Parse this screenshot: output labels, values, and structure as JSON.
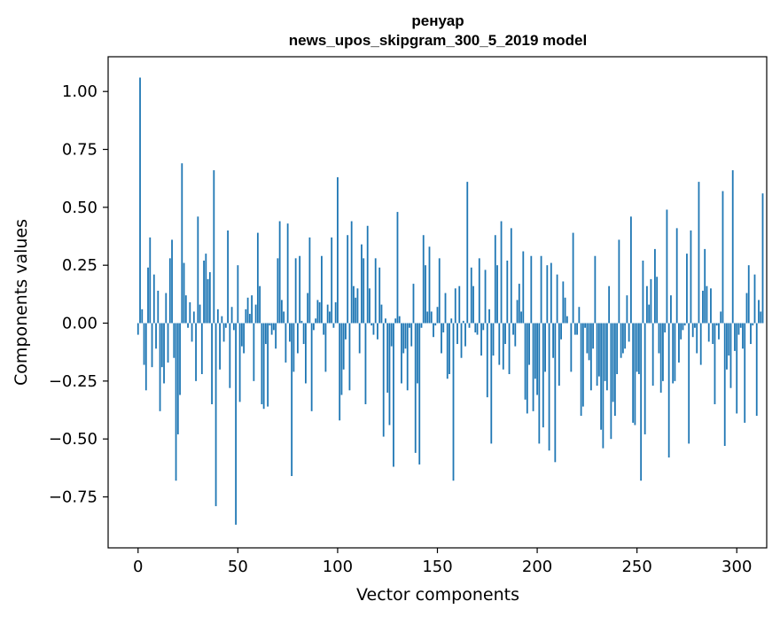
{
  "chart_data": {
    "type": "bar",
    "title": "ренуар",
    "subtitle": "news_upos_skipgram_300_5_2019 model",
    "xlabel": "Vector components",
    "ylabel": "Components values",
    "xlim": [
      -15,
      315
    ],
    "ylim": [
      -0.97,
      1.15
    ],
    "xticks": [
      0,
      50,
      100,
      150,
      200,
      250,
      300
    ],
    "xtick_labels": [
      "0",
      "50",
      "100",
      "150",
      "200",
      "250",
      "300"
    ],
    "yticks": [
      1.0,
      0.75,
      0.5,
      0.25,
      0.0,
      -0.25,
      -0.5,
      -0.75
    ],
    "ytick_labels": [
      "1.00",
      "0.75",
      "0.50",
      "0.25",
      "0.00",
      "−0.25",
      "−0.50",
      "−0.75"
    ],
    "bar_color": "#1f77b4",
    "values": [
      -0.05,
      1.06,
      0.06,
      -0.18,
      -0.29,
      0.24,
      0.37,
      -0.19,
      0.21,
      -0.11,
      0.14,
      -0.38,
      -0.19,
      -0.26,
      0.13,
      -0.17,
      0.28,
      0.36,
      -0.15,
      -0.68,
      -0.48,
      -0.31,
      0.69,
      0.26,
      0.12,
      -0.02,
      0.09,
      -0.08,
      0.05,
      -0.25,
      0.46,
      0.08,
      -0.22,
      0.27,
      0.3,
      0.19,
      0.22,
      -0.35,
      0.66,
      -0.79,
      0.06,
      -0.2,
      0.03,
      -0.08,
      -0.02,
      0.4,
      -0.28,
      0.07,
      -0.03,
      -0.87,
      0.25,
      -0.34,
      -0.1,
      -0.13,
      0.06,
      0.11,
      0.04,
      0.12,
      -0.25,
      0.08,
      0.39,
      0.16,
      -0.35,
      -0.37,
      -0.09,
      -0.36,
      -0.01,
      -0.05,
      -0.03,
      -0.11,
      0.28,
      0.44,
      0.1,
      0.05,
      -0.17,
      0.43,
      -0.08,
      -0.66,
      -0.21,
      0.28,
      -0.13,
      0.29,
      0.01,
      -0.09,
      -0.26,
      0.13,
      0.37,
      -0.38,
      -0.03,
      0.02,
      0.1,
      0.09,
      0.29,
      -0.05,
      -0.21,
      0.08,
      0.05,
      0.37,
      -0.02,
      0.09,
      0.63,
      -0.42,
      -0.31,
      -0.2,
      -0.07,
      0.38,
      -0.29,
      0.44,
      0.16,
      0.11,
      0.15,
      -0.13,
      0.34,
      0.28,
      -0.35,
      0.42,
      0.15,
      -0.01,
      -0.05,
      0.28,
      -0.07,
      0.24,
      0.08,
      -0.49,
      0.02,
      -0.3,
      -0.44,
      -0.1,
      -0.62,
      0.02,
      0.48,
      0.03,
      -0.26,
      -0.13,
      -0.11,
      -0.29,
      -0.02,
      -0.1,
      0.17,
      -0.56,
      -0.26,
      -0.61,
      -0.02,
      0.38,
      0.25,
      0.05,
      0.33,
      0.05,
      -0.06,
      -0.01,
      0.07,
      0.28,
      -0.13,
      -0.04,
      0.13,
      -0.24,
      -0.22,
      0.02,
      -0.68,
      0.15,
      -0.09,
      0.16,
      -0.15,
      0.01,
      -0.1,
      0.61,
      -0.02,
      0.24,
      0.16,
      -0.04,
      -0.05,
      0.28,
      -0.14,
      -0.03,
      0.23,
      -0.32,
      0.06,
      -0.52,
      -0.14,
      0.38,
      0.25,
      -0.18,
      0.44,
      -0.2,
      -0.09,
      0.27,
      -0.22,
      0.41,
      -0.05,
      -0.1,
      0.1,
      0.17,
      0.05,
      0.31,
      -0.33,
      -0.39,
      -0.18,
      0.29,
      -0.38,
      -0.24,
      -0.31,
      -0.52,
      0.29,
      -0.45,
      -0.21,
      0.25,
      -0.55,
      0.26,
      -0.15,
      -0.6,
      0.21,
      -0.27,
      -0.07,
      0.18,
      0.11,
      0.03,
      0.0,
      -0.21,
      0.39,
      -0.05,
      -0.05,
      0.07,
      -0.4,
      -0.36,
      -0.02,
      -0.13,
      -0.16,
      -0.29,
      -0.11,
      0.29,
      -0.27,
      -0.23,
      -0.46,
      -0.54,
      -0.25,
      -0.29,
      0.16,
      -0.5,
      -0.34,
      -0.4,
      -0.22,
      0.36,
      -0.15,
      -0.13,
      -0.11,
      0.12,
      -0.08,
      0.46,
      -0.43,
      -0.44,
      -0.21,
      -0.22,
      -0.68,
      0.27,
      -0.48,
      0.16,
      0.08,
      0.19,
      -0.27,
      0.32,
      0.2,
      -0.13,
      -0.3,
      -0.25,
      -0.04,
      0.49,
      -0.58,
      0.12,
      -0.26,
      -0.25,
      0.41,
      -0.17,
      -0.07,
      -0.03,
      -0.01,
      0.3,
      -0.52,
      0.4,
      -0.06,
      -0.02,
      -0.13,
      0.61,
      -0.18,
      0.14,
      0.32,
      0.16,
      -0.08,
      0.15,
      -0.09,
      -0.35,
      -0.01,
      -0.07,
      0.05,
      0.57,
      -0.53,
      -0.2,
      -0.14,
      -0.28,
      0.66,
      -0.12,
      -0.39,
      -0.05,
      -0.02,
      -0.11,
      -0.43,
      0.13,
      0.25,
      -0.09,
      -0.01,
      0.21,
      -0.4,
      0.1,
      0.05,
      0.56
    ]
  }
}
